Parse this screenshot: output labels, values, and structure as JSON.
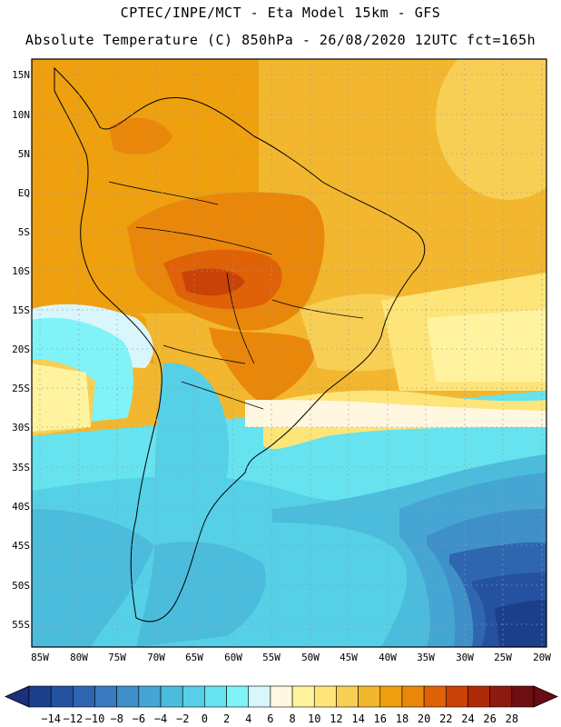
{
  "header": {
    "line1": "CPTEC/INPE/MCT -  Eta Model 15km - GFS",
    "line2": "Absolute Temperature (C) 850hPa - 26/08/2020 12UTC fct=165h"
  },
  "map": {
    "subject": "South America 850hPa temperature field",
    "lat_labels": [
      "15N",
      "10N",
      "5N",
      "EQ",
      "5S",
      "10S",
      "15S",
      "20S",
      "25S",
      "30S",
      "35S",
      "40S",
      "45S",
      "50S",
      "55S"
    ],
    "lon_labels": [
      "85W",
      "80W",
      "75W",
      "70W",
      "65W",
      "60W",
      "55W",
      "50W",
      "45W",
      "40W",
      "35W",
      "30W",
      "25W",
      "20W"
    ]
  },
  "colorbar": {
    "labels": [
      "-14",
      "-12",
      "-10",
      "-8",
      "-6",
      "-4",
      "-2",
      "0",
      "2",
      "4",
      "6",
      "8",
      "10",
      "12",
      "14",
      "16",
      "18",
      "20",
      "22",
      "24",
      "26",
      "28"
    ],
    "colors": [
      "#1c3f8c",
      "#2452a0",
      "#2e66b0",
      "#3a7bc0",
      "#3f8fc9",
      "#45a5d3",
      "#4bbcdc",
      "#55d0e6",
      "#66e3ef",
      "#7ff3f8",
      "#d8f6fb",
      "#fff7e0",
      "#fff3a0",
      "#fde57a",
      "#f8cf55",
      "#f2b72e",
      "#eea00f",
      "#e9870b",
      "#df6108",
      "#c94207",
      "#ae2a09",
      "#8c1a10",
      "#6e0e12"
    ],
    "low_color": "#1b2f7a",
    "high_color": "#6a0a12"
  }
}
